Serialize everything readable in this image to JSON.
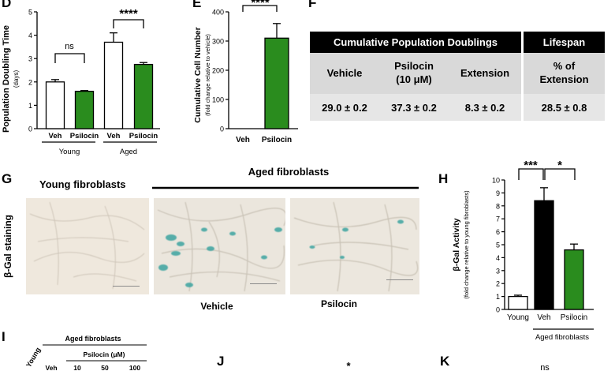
{
  "colors": {
    "young": "#ffffff",
    "vehicle": "#000000",
    "psilocin": "#2a8c1e",
    "outline": "#000000",
    "stain": "#3da4a0"
  },
  "panels": {
    "D": "D",
    "E": "E",
    "F": "F",
    "G": "G",
    "H": "H",
    "I": "I",
    "J": "J",
    "K": "K"
  },
  "chart_data": [
    {
      "id": "D",
      "type": "bar",
      "title": "",
      "ylabel": "Population Doubling Time",
      "ylabel_unit": "(days)",
      "ylim": [
        0,
        5
      ],
      "yticks": [
        "0",
        "1",
        "2",
        "3",
        "4",
        "5"
      ],
      "categories": [
        "Veh",
        "Psilocin",
        "Veh",
        "Psilocin"
      ],
      "groups": [
        "Young",
        "Aged"
      ],
      "values": [
        2.0,
        1.6,
        3.7,
        2.75
      ],
      "errors": [
        0.1,
        0.03,
        0.4,
        0.08
      ],
      "significance": [
        "ns",
        "****"
      ]
    },
    {
      "id": "E",
      "type": "bar",
      "ylabel": "Cumulative Cell Number",
      "ylabel_unit": "(fold change relative to vehicle)",
      "ylim": [
        0,
        400
      ],
      "yticks": [
        "0",
        "100",
        "200",
        "300",
        "400"
      ],
      "categories": [
        "Veh",
        "Psilocin"
      ],
      "values": [
        0,
        310
      ],
      "errors": [
        0,
        50
      ],
      "significance": [
        "****"
      ]
    },
    {
      "id": "H",
      "type": "bar",
      "ylabel": "β-Gal Activity",
      "ylabel_unit": "(fold change relative to young fibroblasts)",
      "ylim": [
        0,
        10
      ],
      "yticks": [
        "0",
        "1",
        "2",
        "3",
        "4",
        "5",
        "6",
        "7",
        "8",
        "9",
        "10"
      ],
      "categories": [
        "Young",
        "Veh",
        "Psilocin"
      ],
      "values": [
        1.0,
        8.4,
        4.6
      ],
      "errors": [
        0.1,
        1.0,
        0.45
      ],
      "group_label": "Aged fibroblasts",
      "significance": [
        "***",
        "*"
      ]
    }
  ],
  "table_F": {
    "header_left": "Cumulative Population Doublings",
    "header_right": "Lifespan",
    "cols": [
      "Vehicle",
      "Psilocin",
      "(10 μM)",
      "Extension",
      "% of",
      "Extension"
    ],
    "values": [
      "29.0 ± 0.2",
      "37.3 ± 0.2",
      "8.3 ± 0.2",
      "28.5 ± 0.8"
    ]
  },
  "panel_G": {
    "young_title": "Young fibroblasts",
    "aged_title": "Aged fibroblasts",
    "row_label": "β-Gal staining",
    "labels": [
      "Vehicle",
      "Psilocin"
    ]
  },
  "panel_I": {
    "young": "Young",
    "aged": "Aged fibroblasts",
    "psilocin": "Psilocin (μM)",
    "cols": [
      "Veh",
      "10",
      "50",
      "100"
    ]
  },
  "panel_J": {
    "sig": "*"
  },
  "panel_K": {
    "sig": "ns"
  }
}
